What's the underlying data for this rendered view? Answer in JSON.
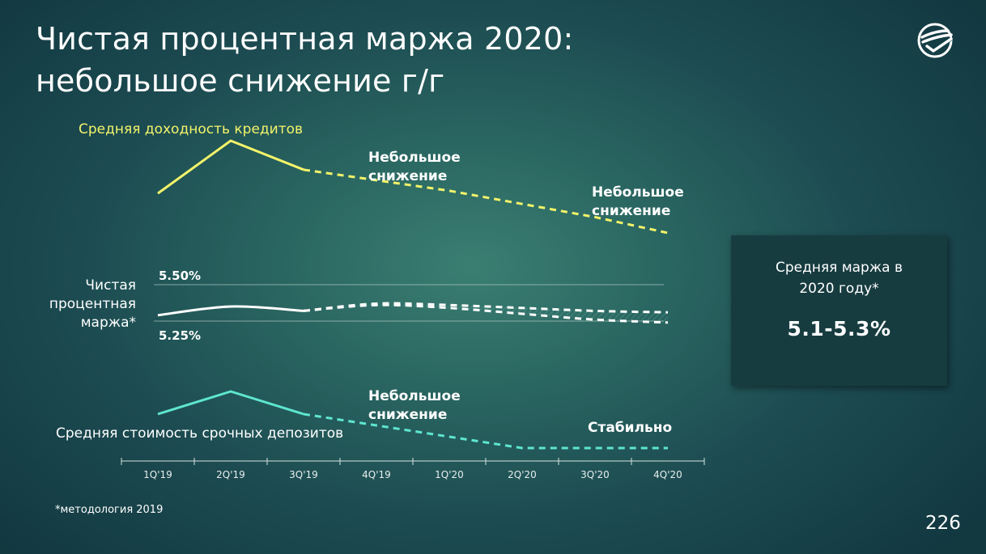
{
  "slide": {
    "title": "Чистая процентная маржа 2020: небольшое снижение г/г",
    "footnote": "*методология 2019",
    "page_number": "226",
    "logo_icon": "sber-logo-icon"
  },
  "annotations": {
    "loan_yield_label": "Средняя доходность кредитов",
    "loan_yield_note_1": "Небольшое снижение",
    "loan_yield_note_2": "Небольшое снижение",
    "nim_label": "Чистая процентная маржа*",
    "deposit_cost_label": "Средняя стоимость срочных депозитов",
    "deposit_cost_note_1": "Небольшое снижение",
    "deposit_cost_note_2": "Стабильно"
  },
  "summary_box": {
    "caption": "Средняя маржа в 2020 году*",
    "value": "5.1-5.3%"
  },
  "colors": {
    "loan_yield": "#f3f36a",
    "nim": "#ffffff",
    "deposit_cost": "#5ee6cf",
    "box_bg": "#173c40"
  },
  "chart_data": {
    "type": "line",
    "categories": [
      "1Q'19",
      "2Q'19",
      "3Q'19",
      "4Q'19",
      "1Q'20",
      "2Q'20",
      "3Q'20",
      "4Q'20"
    ],
    "actual_through_index": 2,
    "nim_reference_lines": [
      {
        "label": "5.50%",
        "value": 5.5
      },
      {
        "label": "5.25%",
        "value": 5.25
      }
    ],
    "nim_ylim": [
      5.15,
      5.6
    ],
    "series": [
      {
        "key": "loan_yield",
        "values": [
          3.0,
          7.0,
          4.8,
          4.0,
          3.2,
          2.2,
          1.2,
          0.0
        ],
        "ylim": [
          0,
          7
        ]
      },
      {
        "key": "nim",
        "values": [
          5.29,
          5.35,
          5.32,
          5.36,
          5.34,
          5.3,
          5.27,
          5.26
        ]
      },
      {
        "key": "nim_upper",
        "values": [
          null,
          null,
          5.32,
          5.37,
          5.36,
          5.34,
          5.32,
          5.31
        ]
      },
      {
        "key": "nim_lower",
        "values": [
          null,
          null,
          5.32,
          5.36,
          5.34,
          5.3,
          5.26,
          5.24
        ]
      },
      {
        "key": "deposit_cost",
        "values": [
          2.0,
          4.0,
          2.0,
          1.0,
          0.0,
          -1.0,
          -1.0,
          -1.0
        ],
        "ylim": [
          -1,
          4
        ]
      }
    ]
  }
}
